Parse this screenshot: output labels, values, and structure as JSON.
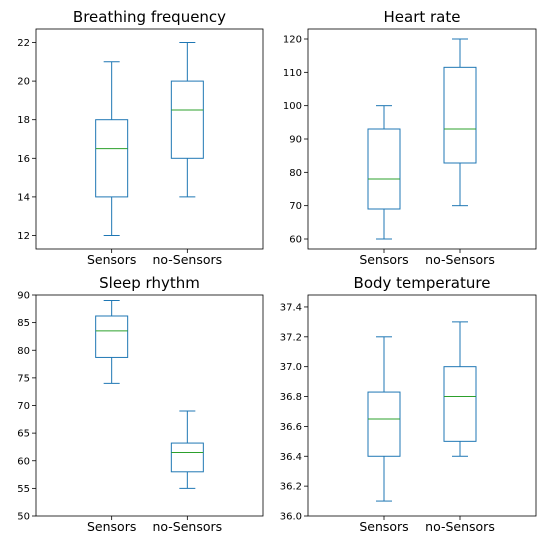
{
  "colors": {
    "box": "#1f77b4",
    "median": "#2ca02c",
    "axes": "#000000",
    "background": "#ffffff"
  },
  "chart_data": [
    {
      "type": "box",
      "title": "Breathing frequency",
      "categories": [
        "Sensors",
        "no-Sensors"
      ],
      "ylim": [
        11.3,
        22.7
      ],
      "yticks": [
        12,
        14,
        16,
        18,
        20,
        22
      ],
      "ytick_labels": [
        "12",
        "14",
        "16",
        "18",
        "20",
        "22"
      ],
      "boxes": [
        {
          "whislo": 12,
          "q1": 14,
          "med": 16.5,
          "q3": 18,
          "whishi": 21
        },
        {
          "whislo": 14,
          "q1": 16,
          "med": 18.5,
          "q3": 20,
          "whishi": 22
        }
      ]
    },
    {
      "type": "box",
      "title": "Heart rate",
      "categories": [
        "Sensors",
        "no-Sensors"
      ],
      "ylim": [
        57,
        123
      ],
      "yticks": [
        60,
        70,
        80,
        90,
        100,
        110,
        120
      ],
      "ytick_labels": [
        "60",
        "70",
        "80",
        "90",
        "100",
        "110",
        "120"
      ],
      "boxes": [
        {
          "whislo": 60,
          "q1": 69,
          "med": 78,
          "q3": 93,
          "whishi": 100
        },
        {
          "whislo": 70,
          "q1": 82.8,
          "med": 93,
          "q3": 111.5,
          "whishi": 120
        }
      ]
    },
    {
      "type": "box",
      "title": "Sleep rhythm",
      "categories": [
        "Sensors",
        "no-Sensors"
      ],
      "ylim": [
        50,
        90
      ],
      "yticks": [
        50,
        55,
        60,
        65,
        70,
        75,
        80,
        85,
        90
      ],
      "ytick_labels": [
        "50",
        "55",
        "60",
        "65",
        "70",
        "75",
        "80",
        "85",
        "90"
      ],
      "boxes": [
        {
          "whislo": 74,
          "q1": 78.7,
          "med": 83.5,
          "q3": 86.2,
          "whishi": 89
        },
        {
          "whislo": 55,
          "q1": 58,
          "med": 61.5,
          "q3": 63.2,
          "whishi": 69
        }
      ]
    },
    {
      "type": "box",
      "title": "Body temperature",
      "categories": [
        "Sensors",
        "no-Sensors"
      ],
      "ylim": [
        36.0,
        37.48
      ],
      "yticks": [
        36.0,
        36.2,
        36.4,
        36.6,
        36.8,
        37.0,
        37.2,
        37.4
      ],
      "ytick_labels": [
        "36.0",
        "36.2",
        "36.4",
        "36.6",
        "36.8",
        "37.0",
        "37.2",
        "37.4"
      ],
      "boxes": [
        {
          "whislo": 36.1,
          "q1": 36.4,
          "med": 36.65,
          "q3": 36.83,
          "whishi": 37.2
        },
        {
          "whislo": 36.4,
          "q1": 36.5,
          "med": 36.8,
          "q3": 37.0,
          "whishi": 37.3
        }
      ]
    }
  ]
}
